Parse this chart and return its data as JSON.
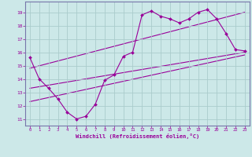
{
  "xlabel": "Windchill (Refroidissement éolien,°C)",
  "bg_color": "#cce8e8",
  "line_color": "#990099",
  "grid_color": "#aacccc",
  "spine_color": "#7777aa",
  "xlim": [
    -0.5,
    23.5
  ],
  "ylim": [
    10.5,
    19.8
  ],
  "xticks": [
    0,
    1,
    2,
    3,
    4,
    5,
    6,
    7,
    8,
    9,
    10,
    11,
    12,
    13,
    14,
    15,
    16,
    17,
    18,
    19,
    20,
    21,
    22,
    23
  ],
  "yticks": [
    11,
    12,
    13,
    14,
    15,
    16,
    17,
    18,
    19
  ],
  "data_x": [
    0,
    1,
    2,
    3,
    4,
    5,
    6,
    7,
    8,
    9,
    10,
    11,
    12,
    13,
    14,
    15,
    16,
    17,
    18,
    19,
    20,
    21,
    22,
    23
  ],
  "data_y": [
    15.6,
    14.0,
    13.3,
    12.5,
    11.5,
    11.0,
    11.2,
    12.1,
    13.9,
    14.3,
    15.7,
    16.0,
    18.8,
    19.1,
    18.7,
    18.5,
    18.2,
    18.5,
    19.0,
    19.2,
    18.5,
    17.4,
    16.2,
    16.1
  ],
  "trend1_x": [
    0,
    23
  ],
  "trend1_y": [
    14.8,
    19.0
  ],
  "trend2_x": [
    0,
    23
  ],
  "trend2_y": [
    13.3,
    16.0
  ],
  "trend3_x": [
    0,
    23
  ],
  "trend3_y": [
    12.3,
    15.8
  ]
}
